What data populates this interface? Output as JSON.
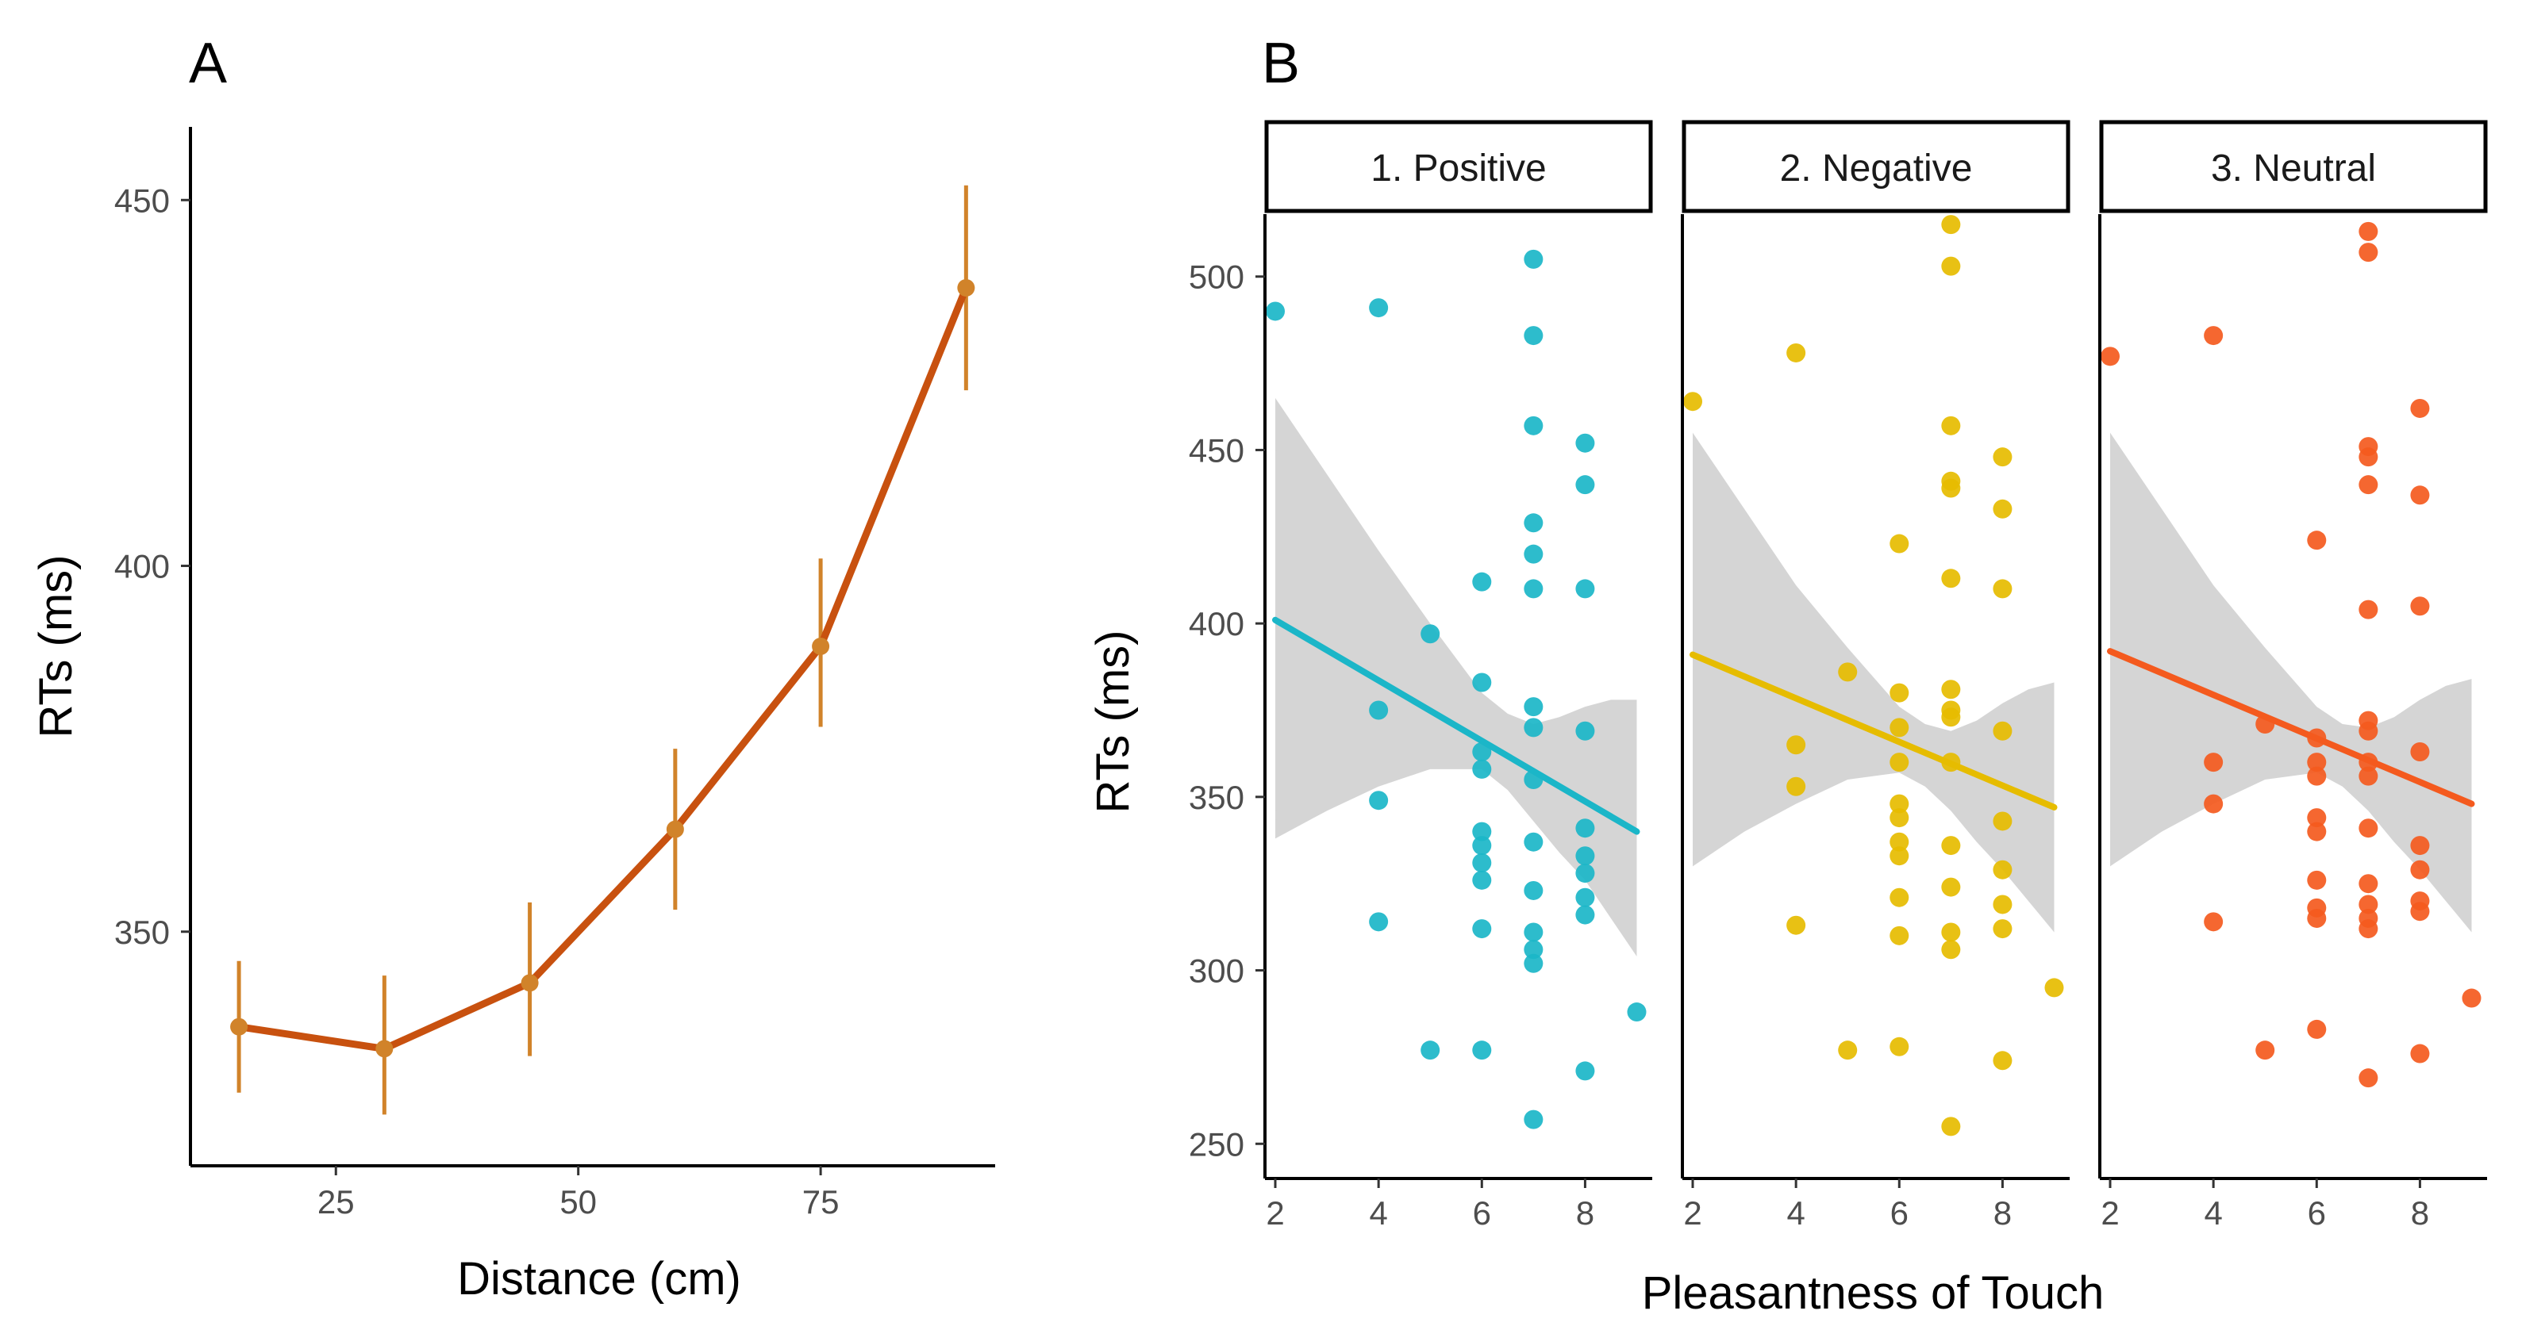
{
  "figure": {
    "panel_a_tag": "A",
    "panel_b_tag": "B",
    "colors": {
      "line_a": "#C8510F",
      "point_a": "#D1832A",
      "positive": "#1BB6C8",
      "negative": "#E6BC00",
      "neutral": "#F45A1E",
      "ribbon": "#BEBEBE"
    }
  },
  "chart_data": [
    {
      "id": "panel-a",
      "type": "line",
      "title": "",
      "xlabel": "Distance (cm)",
      "ylabel": "RTs (ms)",
      "xlim": [
        10,
        93
      ],
      "ylim": [
        318,
        460
      ],
      "xticks": [
        25,
        50,
        75
      ],
      "yticks": [
        350,
        400,
        450
      ],
      "x": [
        15,
        30,
        45,
        60,
        75,
        90
      ],
      "y": [
        337,
        334,
        343,
        364,
        389,
        438
      ],
      "err_low": [
        328,
        325,
        333,
        353,
        378,
        424
      ],
      "err_high": [
        346,
        344,
        354,
        375,
        401,
        452
      ],
      "grid": false
    },
    {
      "id": "panel-b",
      "type": "scatter",
      "title": "",
      "xlabel": "Pleasantness of Touch",
      "ylabel": "RTs (ms)",
      "xlim": [
        1.8,
        9.3
      ],
      "ylim": [
        240,
        518
      ],
      "xticks": [
        2,
        4,
        6,
        8
      ],
      "yticks": [
        250,
        300,
        350,
        400,
        450,
        500
      ],
      "grid": false,
      "facets": [
        {
          "label": "1. Positive",
          "color_key": "positive",
          "points": [
            [
              2,
              490
            ],
            [
              4,
              491
            ],
            [
              4,
              375
            ],
            [
              4,
              349
            ],
            [
              4,
              314
            ],
            [
              5,
              397
            ],
            [
              5,
              277
            ],
            [
              6,
              412
            ],
            [
              6,
              383
            ],
            [
              6,
              363
            ],
            [
              6,
              358
            ],
            [
              6,
              340
            ],
            [
              6,
              336
            ],
            [
              6,
              331
            ],
            [
              6,
              326
            ],
            [
              6,
              312
            ],
            [
              6,
              277
            ],
            [
              7,
              505
            ],
            [
              7,
              483
            ],
            [
              7,
              457
            ],
            [
              7,
              429
            ],
            [
              7,
              420
            ],
            [
              7,
              410
            ],
            [
              7,
              376
            ],
            [
              7,
              370
            ],
            [
              7,
              355
            ],
            [
              7,
              337
            ],
            [
              7,
              323
            ],
            [
              7,
              311
            ],
            [
              7,
              306
            ],
            [
              7,
              302
            ],
            [
              7,
              257
            ],
            [
              8,
              452
            ],
            [
              8,
              440
            ],
            [
              8,
              410
            ],
            [
              8,
              369
            ],
            [
              8,
              341
            ],
            [
              8,
              333
            ],
            [
              8,
              328
            ],
            [
              8,
              321
            ],
            [
              8,
              316
            ],
            [
              8,
              271
            ],
            [
              9,
              288
            ]
          ],
          "fit": {
            "x": [
              2,
              9
            ],
            "y": [
              401,
              340
            ]
          },
          "ribbon": {
            "x": [
              2,
              3,
              4,
              5,
              6,
              6.5,
              7,
              7.5,
              8,
              8.5,
              9
            ],
            "upper": [
              465,
              443,
              421,
              400,
              380,
              374,
              371,
              373,
              376,
              378,
              378
            ],
            "lower": [
              338,
              346,
              353,
              358,
              358,
              352,
              343,
              334,
              326,
              315,
              304
            ]
          }
        },
        {
          "label": "2. Negative",
          "color_key": "negative",
          "points": [
            [
              2,
              464
            ],
            [
              4,
              478
            ],
            [
              4,
              365
            ],
            [
              4,
              353
            ],
            [
              4,
              313
            ],
            [
              5,
              386
            ],
            [
              5,
              277
            ],
            [
              6,
              423
            ],
            [
              6,
              380
            ],
            [
              6,
              370
            ],
            [
              6,
              360
            ],
            [
              6,
              348
            ],
            [
              6,
              344
            ],
            [
              6,
              337
            ],
            [
              6,
              333
            ],
            [
              6,
              321
            ],
            [
              6,
              310
            ],
            [
              6,
              278
            ],
            [
              7,
              515
            ],
            [
              7,
              503
            ],
            [
              7,
              457
            ],
            [
              7,
              441
            ],
            [
              7,
              439
            ],
            [
              7,
              413
            ],
            [
              7,
              381
            ],
            [
              7,
              375
            ],
            [
              7,
              373
            ],
            [
              7,
              360
            ],
            [
              7,
              336
            ],
            [
              7,
              324
            ],
            [
              7,
              311
            ],
            [
              7,
              306
            ],
            [
              7,
              255
            ],
            [
              8,
              448
            ],
            [
              8,
              433
            ],
            [
              8,
              410
            ],
            [
              8,
              369
            ],
            [
              8,
              343
            ],
            [
              8,
              329
            ],
            [
              8,
              319
            ],
            [
              8,
              312
            ],
            [
              8,
              274
            ],
            [
              9,
              295
            ]
          ],
          "fit": {
            "x": [
              2,
              9
            ],
            "y": [
              391,
              347
            ]
          },
          "ribbon": {
            "x": [
              2,
              3,
              4,
              5,
              6,
              6.5,
              7,
              7.5,
              8,
              8.5,
              9
            ],
            "upper": [
              455,
              433,
              411,
              393,
              376,
              371,
              369,
              372,
              377,
              381,
              383
            ],
            "lower": [
              330,
              340,
              348,
              355,
              357,
              353,
              346,
              337,
              329,
              320,
              311
            ]
          }
        },
        {
          "label": "3. Neutral",
          "color_key": "neutral",
          "points": [
            [
              2,
              477
            ],
            [
              4,
              483
            ],
            [
              4,
              360
            ],
            [
              4,
              348
            ],
            [
              4,
              314
            ],
            [
              5,
              371
            ],
            [
              5,
              277
            ],
            [
              6,
              424
            ],
            [
              6,
              367
            ],
            [
              6,
              360
            ],
            [
              6,
              356
            ],
            [
              6,
              344
            ],
            [
              6,
              340
            ],
            [
              6,
              326
            ],
            [
              6,
              318
            ],
            [
              6,
              315
            ],
            [
              6,
              283
            ],
            [
              7,
              513
            ],
            [
              7,
              507
            ],
            [
              7,
              451
            ],
            [
              7,
              448
            ],
            [
              7,
              440
            ],
            [
              7,
              404
            ],
            [
              7,
              372
            ],
            [
              7,
              369
            ],
            [
              7,
              360
            ],
            [
              7,
              356
            ],
            [
              7,
              341
            ],
            [
              7,
              325
            ],
            [
              7,
              319
            ],
            [
              7,
              315
            ],
            [
              7,
              312
            ],
            [
              7,
              269
            ],
            [
              8,
              462
            ],
            [
              8,
              437
            ],
            [
              8,
              405
            ],
            [
              8,
              363
            ],
            [
              8,
              336
            ],
            [
              8,
              329
            ],
            [
              8,
              320
            ],
            [
              8,
              317
            ],
            [
              8,
              276
            ],
            [
              9,
              292
            ]
          ],
          "fit": {
            "x": [
              2,
              9
            ],
            "y": [
              392,
              348
            ]
          },
          "ribbon": {
            "x": [
              2,
              3,
              4,
              5,
              6,
              6.5,
              7,
              7.5,
              8,
              8.5,
              9
            ],
            "upper": [
              455,
              433,
              411,
              393,
              376,
              371,
              370,
              373,
              378,
              382,
              384
            ],
            "lower": [
              330,
              340,
              348,
              355,
              357,
              353,
              346,
              337,
              329,
              320,
              311
            ]
          }
        }
      ]
    }
  ]
}
